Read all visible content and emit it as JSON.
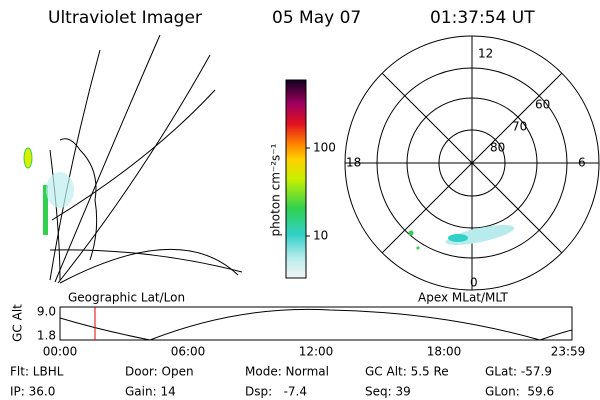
{
  "header": {
    "title": "Ultraviolet Imager",
    "date": "05 May 07",
    "time": "01:37:54 UT"
  },
  "colorbar": {
    "label": "photon cm⁻²s⁻¹",
    "ticks": [
      "100",
      "10"
    ]
  },
  "polar": {
    "mlt_labels": [
      "12",
      "18",
      "6",
      "0"
    ],
    "mlat_labels": [
      "60",
      "70",
      "80"
    ]
  },
  "panel_labels": {
    "left": "Geographic Lat/Lon",
    "right": "Apex MLat/MLT"
  },
  "altitude_plot": {
    "axis_label": "GC Alt",
    "yticks": [
      "9.0",
      "1.8"
    ],
    "xticks": [
      "00:00",
      "06:00",
      "12:00",
      "18:00",
      "23:59"
    ]
  },
  "footer": {
    "rows": [
      [
        "Flt: LBHL",
        "Door: Open",
        "Mode: Normal",
        "GC Alt: 5.5 Re",
        "GLat: -57.9"
      ],
      [
        "IP: 36.0",
        "Gain: 14",
        "Dsp:   -7.4",
        "Seq: 39",
        "GLon:  59.6"
      ]
    ]
  }
}
